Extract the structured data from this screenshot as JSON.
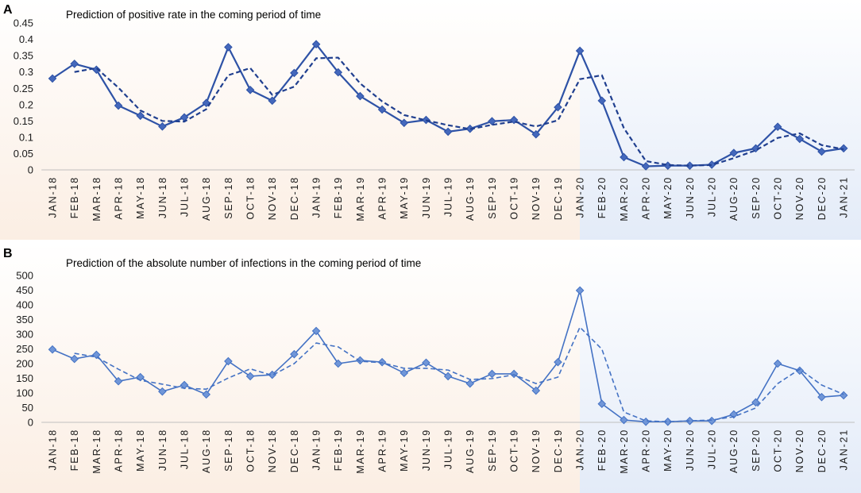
{
  "background": {
    "left_tint": "#FBEEE3",
    "right_tint": "#E3EBF8",
    "top_color": "#FFFFFF"
  },
  "chart_data": [
    {
      "type": "line",
      "panel_label": "A",
      "title": "Prediction of positive rate in the coming period of time",
      "xlabel": "",
      "ylabel": "",
      "grid": false,
      "ylim": [
        0,
        0.45
      ],
      "yticks": [
        "0",
        "0.05",
        "0.1",
        "0.15",
        "0.2",
        "0.25",
        "0.3",
        "0.35",
        "0.4",
        "0.45"
      ],
      "categories": [
        "JAN-18",
        "FEB-18",
        "MAR-18",
        "APR-18",
        "MAY-18",
        "JUN-18",
        "JUL-18",
        "AUG-18",
        "SEP-18",
        "OCT-18",
        "NOV-18",
        "DEC-18",
        "JAN-19",
        "FEB-19",
        "MAR-19",
        "APR-19",
        "MAY-19",
        "JUN-19",
        "JUL-19",
        "AUG-19",
        "SEP-19",
        "OCT-19",
        "NOV-19",
        "DEC-19",
        "JAN-20",
        "FEB-20",
        "MAR-20",
        "APR-20",
        "MAY-20",
        "JUN-20",
        "JUL-20",
        "AUG-20",
        "SEP-20",
        "OCT-20",
        "NOV-20",
        "DEC-20",
        "JAN-21"
      ],
      "series": [
        {
          "dashed": false,
          "markers": true,
          "color": "#2E52A6",
          "marker_fill": "#4468BC",
          "values": [
            0.28,
            0.325,
            0.307,
            0.197,
            0.166,
            0.133,
            0.161,
            0.205,
            0.376,
            0.245,
            0.212,
            0.297,
            0.385,
            0.299,
            0.226,
            0.185,
            0.144,
            0.153,
            0.117,
            0.126,
            0.149,
            0.153,
            0.109,
            0.192,
            0.365,
            0.212,
            0.039,
            0.011,
            0.013,
            0.013,
            0.016,
            0.052,
            0.066,
            0.132,
            0.095,
            0.056,
            0.066
          ]
        },
        {
          "dashed": true,
          "markers": false,
          "color": "#203F8F",
          "values": [
            null,
            0.3,
            0.312,
            0.252,
            0.182,
            0.15,
            0.148,
            0.186,
            0.29,
            0.312,
            0.23,
            0.255,
            0.342,
            0.344,
            0.265,
            0.21,
            0.168,
            0.152,
            0.137,
            0.125,
            0.138,
            0.148,
            0.133,
            0.152,
            0.278,
            0.29,
            0.128,
            0.027,
            0.015,
            0.013,
            0.015,
            0.036,
            0.06,
            0.098,
            0.112,
            0.076,
            0.063
          ]
        }
      ]
    },
    {
      "type": "line",
      "panel_label": "B",
      "title": "Prediction of the absolute number of infections in the coming period of time",
      "xlabel": "",
      "ylabel": "",
      "grid": false,
      "ylim": [
        0,
        500
      ],
      "yticks": [
        "0",
        "50",
        "100",
        "150",
        "200",
        "250",
        "300",
        "350",
        "400",
        "450",
        "500"
      ],
      "categories": [
        "JAN-18",
        "FEB-18",
        "MAR-18",
        "APR-18",
        "MAY-18",
        "JUN-18",
        "JUL-18",
        "AUG-18",
        "SEP-18",
        "OCT-18",
        "NOV-18",
        "DEC-18",
        "JAN-19",
        "FEB-19",
        "MAR-19",
        "APR-19",
        "MAY-19",
        "JUN-19",
        "JUL-19",
        "AUG-19",
        "SEP-19",
        "OCT-19",
        "NOV-19",
        "DEC-19",
        "JAN-20",
        "FEB-20",
        "MAR-20",
        "APR-20",
        "MAY-20",
        "JUN-20",
        "JUL-20",
        "AUG-20",
        "SEP-20",
        "OCT-20",
        "NOV-20",
        "DEC-20",
        "JAN-21"
      ],
      "series": [
        {
          "dashed": false,
          "markers": true,
          "color": "#4472C4",
          "marker_fill": "#7096D8",
          "values": [
            248,
            216,
            230,
            140,
            154,
            105,
            127,
            95,
            208,
            157,
            162,
            232,
            311,
            200,
            211,
            205,
            168,
            203,
            157,
            132,
            165,
            165,
            108,
            205,
            449,
            63,
            8,
            2,
            2,
            5,
            5,
            27,
            68,
            200,
            176,
            86,
            92
          ]
        },
        {
          "dashed": true,
          "markers": false,
          "color": "#4472C4",
          "values": [
            null,
            235,
            222,
            181,
            143,
            130,
            116,
            113,
            151,
            182,
            160,
            200,
            270,
            257,
            208,
            203,
            184,
            184,
            178,
            146,
            149,
            162,
            132,
            154,
            324,
            249,
            35,
            5,
            2,
            5,
            8,
            19,
            49,
            132,
            181,
            127,
            95
          ]
        }
      ]
    }
  ]
}
